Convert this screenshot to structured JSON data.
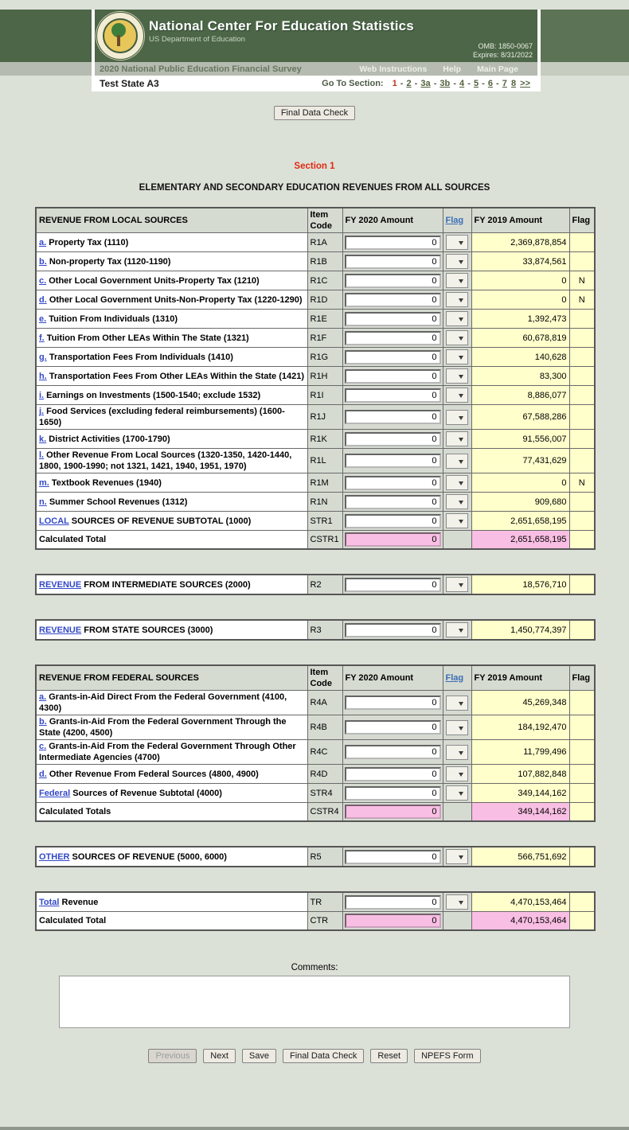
{
  "header": {
    "agency": "National Center For Education Statistics",
    "department": "US Department of Education",
    "omb": "OMB: 1850-0067",
    "expires": "Expires: 8/31/2022",
    "survey_title": "2020 National Public Education Financial Survey",
    "menu": [
      "Web Instructions",
      "Help",
      "Main Page"
    ],
    "state": "Test State A3",
    "goto_label": "Go To Section:",
    "sections": [
      {
        "label": "1",
        "current": true,
        "trail": " - "
      },
      {
        "label": "2",
        "trail": " - "
      },
      {
        "label": "3a",
        "trail": " - "
      },
      {
        "label": "3b",
        "trail": " - "
      },
      {
        "label": "4",
        "trail": " - "
      },
      {
        "label": "5",
        "trail": " - "
      },
      {
        "label": "6",
        "trail": " - "
      },
      {
        "label": "7",
        "trail": "  "
      },
      {
        "label": "8",
        "trail": "  "
      },
      {
        "label": ">>",
        "trail": ""
      }
    ]
  },
  "top_button_label": "Final Data Check",
  "section_label": "Section 1",
  "main_heading": "ELEMENTARY AND SECONDARY EDUCATION REVENUES FROM ALL SOURCES",
  "columns": {
    "item_code": "Item Code",
    "fy2020": "FY 2020 Amount",
    "flag": "Flag",
    "fy2019": "FY 2019 Amount",
    "flag_right": "Flag"
  },
  "tables": [
    {
      "id": "local",
      "title": "REVENUE FROM LOCAL SOURCES",
      "has_header": true,
      "rows": [
        {
          "link": "a.",
          "label": "Property Tax (1110)",
          "code": "R1A",
          "fy2020": "0",
          "fy2019": "2,369,878,854",
          "flag2019": ""
        },
        {
          "link": "b.",
          "label": "Non-property Tax (1120-1190)",
          "code": "R1B",
          "fy2020": "0",
          "fy2019": "33,874,561",
          "flag2019": ""
        },
        {
          "link": "c.",
          "label": "Other Local Government Units-Property Tax (1210)",
          "code": "R1C",
          "fy2020": "0",
          "fy2019": "0",
          "flag2019": "N"
        },
        {
          "link": "d.",
          "label": "Other Local Government Units-Non-Property Tax (1220-1290)",
          "code": "R1D",
          "fy2020": "0",
          "fy2019": "0",
          "flag2019": "N"
        },
        {
          "link": "e.",
          "label": "Tuition From Individuals (1310)",
          "code": "R1E",
          "fy2020": "0",
          "fy2019": "1,392,473",
          "flag2019": ""
        },
        {
          "link": "f.",
          "label": "Tuition From Other LEAs Within The State (1321)",
          "code": "R1F",
          "fy2020": "0",
          "fy2019": "60,678,819",
          "flag2019": ""
        },
        {
          "link": "g.",
          "label": "Transportation Fees From Individuals (1410)",
          "code": "R1G",
          "fy2020": "0",
          "fy2019": "140,628",
          "flag2019": ""
        },
        {
          "link": "h.",
          "label": "Transportation Fees From Other LEAs Within the State (1421)",
          "code": "R1H",
          "fy2020": "0",
          "fy2019": "83,300",
          "flag2019": ""
        },
        {
          "link": "i.",
          "label": "Earnings on Investments (1500-1540; exclude 1532)",
          "code": "R1I",
          "fy2020": "0",
          "fy2019": "8,886,077",
          "flag2019": ""
        },
        {
          "link": "j.",
          "label": "Food Services (excluding federal reimbursements) (1600-1650)",
          "code": "R1J",
          "fy2020": "0",
          "fy2019": "67,588,286",
          "flag2019": ""
        },
        {
          "link": "k.",
          "label": "District Activities (1700-1790)",
          "code": "R1K",
          "fy2020": "0",
          "fy2019": "91,556,007",
          "flag2019": ""
        },
        {
          "link": "l.",
          "label": "Other Revenue From Local Sources (1320-1350, 1420-1440, 1800, 1900-1990; not 1321, 1421, 1940, 1951, 1970)",
          "code": "R1L",
          "fy2020": "0",
          "fy2019": "77,431,629",
          "flag2019": ""
        },
        {
          "link": "m.",
          "label": "Textbook Revenues (1940)",
          "code": "R1M",
          "fy2020": "0",
          "fy2019": "0",
          "flag2019": "N"
        },
        {
          "link": "n.",
          "label": "Summer School Revenues (1312)",
          "code": "R1N",
          "fy2020": "0",
          "fy2019": "909,680",
          "flag2019": ""
        },
        {
          "link": "LOCAL",
          "label": "SOURCES OF REVENUE SUBTOTAL (1000)",
          "code": "STR1",
          "fy2020": "0",
          "fy2019": "2,651,658,195",
          "flag2019": ""
        },
        {
          "label": "Calculated Total",
          "code": "CSTR1",
          "fy2020": "0",
          "fy2019": "2,651,658,195",
          "flag2019": "",
          "calc": true
        }
      ]
    },
    {
      "id": "intermediate",
      "has_header": false,
      "rows": [
        {
          "link": "REVENUE",
          "label": "FROM INTERMEDIATE SOURCES (2000)",
          "code": "R2",
          "fy2020": "0",
          "fy2019": "18,576,710",
          "flag2019": ""
        }
      ]
    },
    {
      "id": "state",
      "has_header": false,
      "rows": [
        {
          "link": "REVENUE",
          "label": "FROM STATE SOURCES (3000)",
          "code": "R3",
          "fy2020": "0",
          "fy2019": "1,450,774,397",
          "flag2019": ""
        }
      ]
    },
    {
      "id": "federal",
      "title": "REVENUE FROM FEDERAL SOURCES",
      "has_header": true,
      "rows": [
        {
          "link": "a.",
          "label": "Grants-in-Aid Direct From the Federal Government (4100, 4300)",
          "code": "R4A",
          "fy2020": "0",
          "fy2019": "45,269,348",
          "flag2019": ""
        },
        {
          "link": "b.",
          "label": "Grants-in-Aid From the Federal Government Through the State (4200, 4500)",
          "code": "R4B",
          "fy2020": "0",
          "fy2019": "184,192,470",
          "flag2019": ""
        },
        {
          "link": "c.",
          "label": "Grants-in-Aid From the Federal Government Through Other Intermediate Agencies (4700)",
          "code": "R4C",
          "fy2020": "0",
          "fy2019": "11,799,496",
          "flag2019": ""
        },
        {
          "link": "d.",
          "label": "Other Revenue From Federal Sources (4800, 4900)",
          "code": "R4D",
          "fy2020": "0",
          "fy2019": "107,882,848",
          "flag2019": ""
        },
        {
          "link": "Federal",
          "label": "Sources of Revenue Subtotal (4000)",
          "code": "STR4",
          "fy2020": "0",
          "fy2019": "349,144,162",
          "flag2019": ""
        },
        {
          "label": "Calculated Totals",
          "code": "CSTR4",
          "fy2020": "0",
          "fy2019": "349,144,162",
          "flag2019": "",
          "calc": true
        }
      ]
    },
    {
      "id": "other",
      "has_header": false,
      "rows": [
        {
          "link": "OTHER",
          "label": "SOURCES OF REVENUE (5000, 6000)",
          "code": "R5",
          "fy2020": "0",
          "fy2019": "566,751,692",
          "flag2019": ""
        }
      ]
    },
    {
      "id": "total",
      "has_header": false,
      "rows": [
        {
          "link": "Total",
          "label": "Revenue",
          "code": "TR",
          "fy2020": "0",
          "fy2019": "4,470,153,464",
          "flag2019": ""
        },
        {
          "label": "Calculated Total",
          "code": "CTR",
          "fy2020": "0",
          "fy2019": "4,470,153,464",
          "flag2019": "",
          "calc": true
        }
      ]
    }
  ],
  "comments_label": "Comments:",
  "footer_buttons": [
    {
      "label": "Previous",
      "disabled": true
    },
    {
      "label": "Next"
    },
    {
      "label": "Save"
    },
    {
      "label": "Final Data Check"
    },
    {
      "label": "Reset"
    },
    {
      "label": "NPEFS Form"
    }
  ],
  "colors": {
    "header_green": "#4c6647",
    "pink_calc": "#f9bee3",
    "prior_year_yellow": "#ffffcc",
    "current_section_red": "#c03425",
    "link_blue": "#3348c8"
  }
}
